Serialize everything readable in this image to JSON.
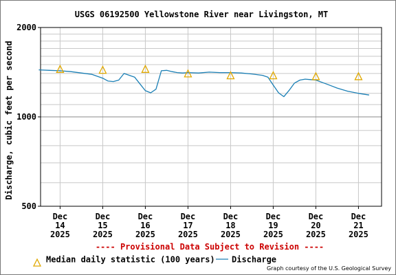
{
  "chart_data": {
    "type": "line",
    "title": "USGS 06192500 Yellowstone River near Livingston, MT",
    "ylabel": "Discharge, cubic feet per second",
    "y_scale": "log",
    "ylim": [
      500,
      2000
    ],
    "y_ticks": [
      "2000",
      "1000",
      "500"
    ],
    "grid": true,
    "x_ticks": [
      {
        "label": [
          "Dec",
          "14",
          "2025"
        ]
      },
      {
        "label": [
          "Dec",
          "15",
          "2025"
        ]
      },
      {
        "label": [
          "Dec",
          "16",
          "2025"
        ]
      },
      {
        "label": [
          "Dec",
          "17",
          "2025"
        ]
      },
      {
        "label": [
          "Dec",
          "18",
          "2025"
        ]
      },
      {
        "label": [
          "Dec",
          "19",
          "2025"
        ]
      },
      {
        "label": [
          "Dec",
          "20",
          "2025"
        ]
      },
      {
        "label": [
          "Dec",
          "21",
          "2025"
        ]
      }
    ],
    "series": [
      {
        "name": "Discharge",
        "color": "#1a7fb5",
        "x": [
          "Dec 13 12:00",
          "Dec 13 18:00",
          "Dec 14 00:00",
          "Dec 14 06:00",
          "Dec 14 12:00",
          "Dec 14 18:00",
          "Dec 15 00:00",
          "Dec 15 03:00",
          "Dec 15 06:00",
          "Dec 15 09:00",
          "Dec 15 12:00",
          "Dec 15 18:00",
          "Dec 15 21:00",
          "Dec 16 00:00",
          "Dec 16 03:00",
          "Dec 16 06:00",
          "Dec 16 09:00",
          "Dec 16 12:00",
          "Dec 16 15:00",
          "Dec 16 18:00",
          "Dec 16 21:00",
          "Dec 17 00:00",
          "Dec 17 06:00",
          "Dec 17 12:00",
          "Dec 17 18:00",
          "Dec 18 00:00",
          "Dec 18 06:00",
          "Dec 18 12:00",
          "Dec 18 18:00",
          "Dec 18 21:00",
          "Dec 19 00:00",
          "Dec 19 03:00",
          "Dec 19 06:00",
          "Dec 19 09:00",
          "Dec 19 12:00",
          "Dec 19 15:00",
          "Dec 19 18:00",
          "Dec 19 21:00",
          "Dec 20 00:00",
          "Dec 20 06:00",
          "Dec 20 12:00",
          "Dec 20 18:00",
          "Dec 21 00:00",
          "Dec 21 06:00"
        ],
        "y": [
          1440,
          1435,
          1430,
          1420,
          1405,
          1390,
          1350,
          1320,
          1315,
          1330,
          1400,
          1360,
          1290,
          1225,
          1205,
          1240,
          1430,
          1435,
          1420,
          1410,
          1405,
          1410,
          1405,
          1415,
          1410,
          1410,
          1405,
          1395,
          1380,
          1360,
          1280,
          1205,
          1170,
          1230,
          1300,
          1330,
          1340,
          1335,
          1330,
          1290,
          1250,
          1220,
          1200,
          1185
        ]
      },
      {
        "name": "Median daily statistic (100 years)",
        "marker": "triangle",
        "color": "#e0a800",
        "x": [
          "Dec 14 00:00",
          "Dec 15 00:00",
          "Dec 16 00:00",
          "Dec 17 00:00",
          "Dec 18 00:00",
          "Dec 19 00:00",
          "Dec 20 00:00",
          "Dec 21 00:00"
        ],
        "y": [
          1450,
          1440,
          1450,
          1400,
          1380,
          1380,
          1370,
          1370
        ]
      }
    ],
    "legend": {
      "placement": "bottom",
      "items": [
        {
          "label": "Median daily statistic (100 years)",
          "symbol": "triangle"
        },
        {
          "label": "Discharge",
          "symbol": "line"
        }
      ]
    },
    "annotations": {
      "provisional": "---- Provisional Data Subject to Revision ----",
      "credit": "Graph courtesy of the U.S. Geological Survey"
    }
  },
  "colors": {
    "discharge": "#1a7fb5",
    "median": "#e0a800",
    "provisional": "#cc0000",
    "grid": "#c8c8c8",
    "axis": "#000000"
  }
}
